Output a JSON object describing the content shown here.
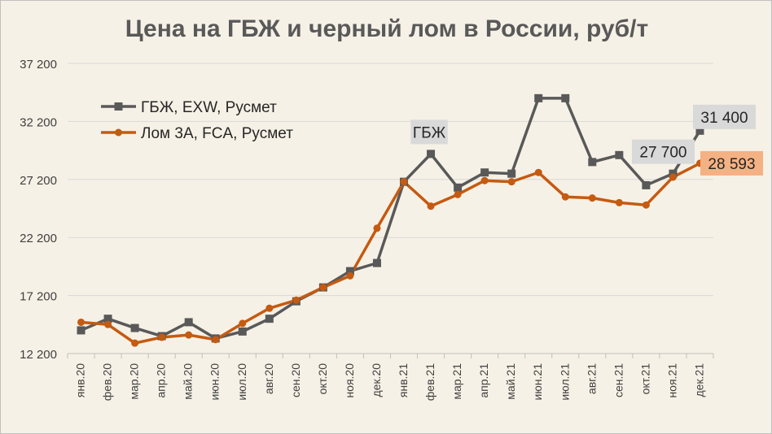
{
  "chart_data": {
    "type": "line",
    "title": "Цена на ГБЖ и черный лом в России, руб/т",
    "xlabel": "",
    "ylabel": "",
    "ylim": [
      12200,
      37200
    ],
    "yticks": [
      12200,
      17200,
      22200,
      27200,
      32200,
      37200
    ],
    "ytick_labels": [
      "12 200",
      "17 200",
      "22 200",
      "27 200",
      "32 200",
      "37 200"
    ],
    "grid": true,
    "legend_position": "top-left",
    "categories": [
      "янв.20",
      "фев.20",
      "мар.20",
      "апр.20",
      "май.20",
      "июн.20",
      "июл.20",
      "авг.20",
      "сен.20",
      "окт.20",
      "ноя.20",
      "дек.20",
      "янв.21",
      "фев.21",
      "мар.21",
      "апр.21",
      "май.21",
      "июн.21",
      "июл.21",
      "авг.21",
      "сен.21",
      "окт.21",
      "ноя.21",
      "дек.21"
    ],
    "series": [
      {
        "name": "ГБЖ, EXW, Русмет",
        "color": "#595959",
        "marker": "square",
        "values": [
          14200,
          15200,
          14400,
          13700,
          14900,
          13500,
          14100,
          15200,
          16700,
          17900,
          19300,
          20000,
          27000,
          29400,
          26500,
          27800,
          27700,
          34200,
          34200,
          28700,
          29300,
          26700,
          27700,
          31400
        ]
      },
      {
        "name": "Лом 3А, FCA, Русмет",
        "color": "#c55a11",
        "marker": "circle",
        "values": [
          14900,
          14700,
          13100,
          13600,
          13800,
          13400,
          14800,
          16100,
          16800,
          17900,
          18900,
          23000,
          27000,
          24900,
          25900,
          27100,
          27000,
          27800,
          25700,
          25600,
          25200,
          25000,
          27400,
          28593
        ]
      }
    ],
    "annotations": [
      {
        "text": "ГБЖ",
        "category_index": 13,
        "series_index": 0,
        "style": "gray"
      },
      {
        "text": "31 400",
        "category_index": 23,
        "series_index": 0,
        "style": "gray"
      },
      {
        "text": "27 700",
        "category_index": 22,
        "series_index": 0,
        "style": "gray"
      },
      {
        "text": "28 593",
        "category_index": 23,
        "series_index": 1,
        "style": "orange"
      }
    ]
  }
}
